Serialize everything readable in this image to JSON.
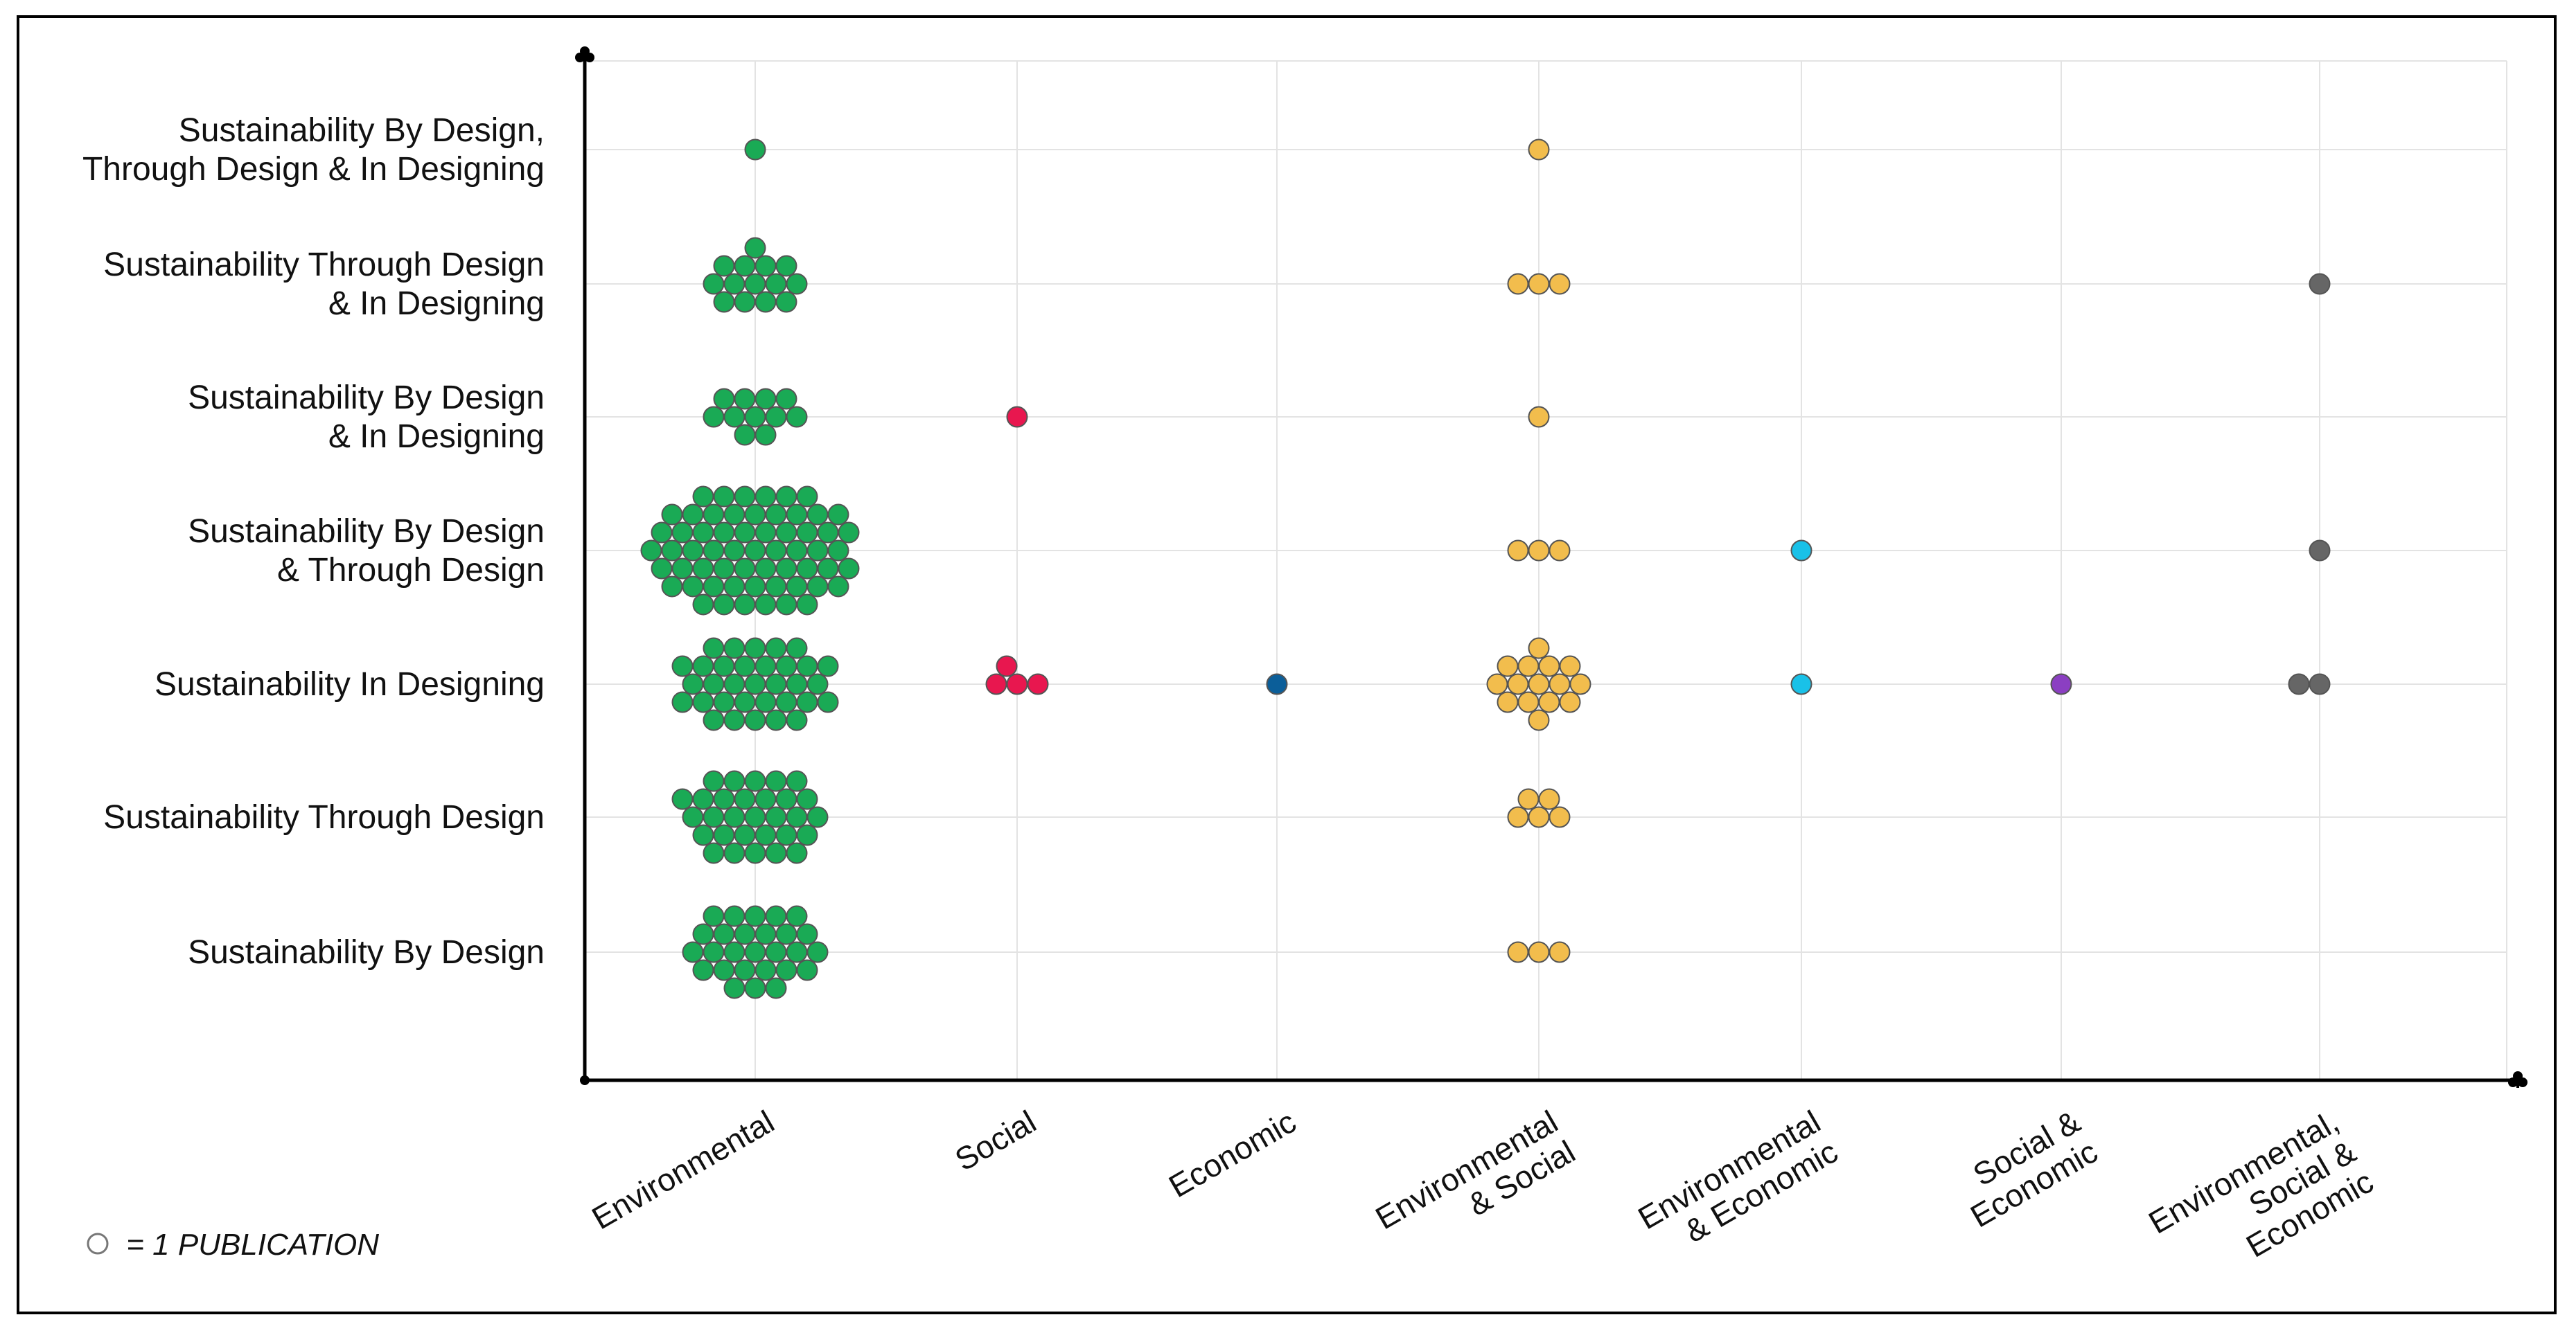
{
  "chart_data": {
    "type": "scatter",
    "subtype": "beeswarm",
    "title": "",
    "xlabel": "",
    "ylabel": "",
    "grid": true,
    "categories_x": [
      {
        "lines": [
          "Environmental"
        ]
      },
      {
        "lines": [
          "Social"
        ]
      },
      {
        "lines": [
          "Economic"
        ]
      },
      {
        "lines": [
          "Environmental",
          "& Social"
        ]
      },
      {
        "lines": [
          "Environmental",
          "& Economic"
        ]
      },
      {
        "lines": [
          "Social &",
          "Economic"
        ]
      },
      {
        "lines": [
          "Environmental,",
          "Social &",
          "Economic"
        ]
      }
    ],
    "categories_y": [
      {
        "lines": [
          "Sustainability By Design,",
          "Through Design & In Designing"
        ]
      },
      {
        "lines": [
          "Sustainability Through Design",
          "& In Designing"
        ]
      },
      {
        "lines": [
          "Sustainability By Design",
          "& In Designing"
        ]
      },
      {
        "lines": [
          "Sustainability By Design",
          "& Through Design"
        ]
      },
      {
        "lines": [
          "Sustainability In Designing"
        ]
      },
      {
        "lines": [
          "Sustainability Through Design"
        ]
      },
      {
        "lines": [
          "Sustainability By Design"
        ]
      }
    ],
    "colors": [
      "#1aaa55",
      "#e8174f",
      "#0b5e99",
      "#f2bd4d",
      "#19c1e8",
      "#8b3fc2",
      "#666666"
    ],
    "values": [
      [
        1,
        0,
        0,
        1,
        0,
        0,
        0
      ],
      [
        14,
        0,
        0,
        3,
        0,
        0,
        1
      ],
      [
        11,
        1,
        0,
        1,
        0,
        0,
        0
      ],
      [
        60,
        0,
        0,
        3,
        1,
        0,
        1
      ],
      [
        33,
        4,
        1,
        15,
        1,
        1,
        2
      ],
      [
        30,
        0,
        0,
        5,
        0,
        0,
        0
      ],
      [
        27,
        0,
        0,
        3,
        0,
        0,
        0
      ]
    ],
    "legend": {
      "symbol": "○",
      "text": " = 1 PUBLICATION",
      "position": "bottom-left"
    }
  }
}
